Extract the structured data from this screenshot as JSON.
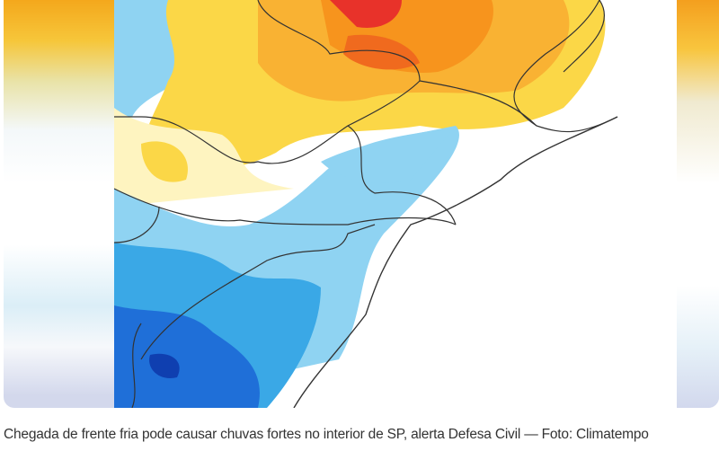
{
  "figure": {
    "alt": "Mapa de anomalia de temperatura no Sudeste e Sul do Brasil",
    "colors": {
      "hot": "#e8322a",
      "orange": "#f7941d",
      "yellow": "#fbd747",
      "lightblue": "#8fd3f2",
      "blue": "#2f9fe0",
      "darkblue": "#1a5fd0"
    }
  },
  "caption": {
    "text": "Chegada de frente fria pode causar chuvas fortes no interior de SP, alerta Defesa Civil — Foto: Climatempo"
  }
}
